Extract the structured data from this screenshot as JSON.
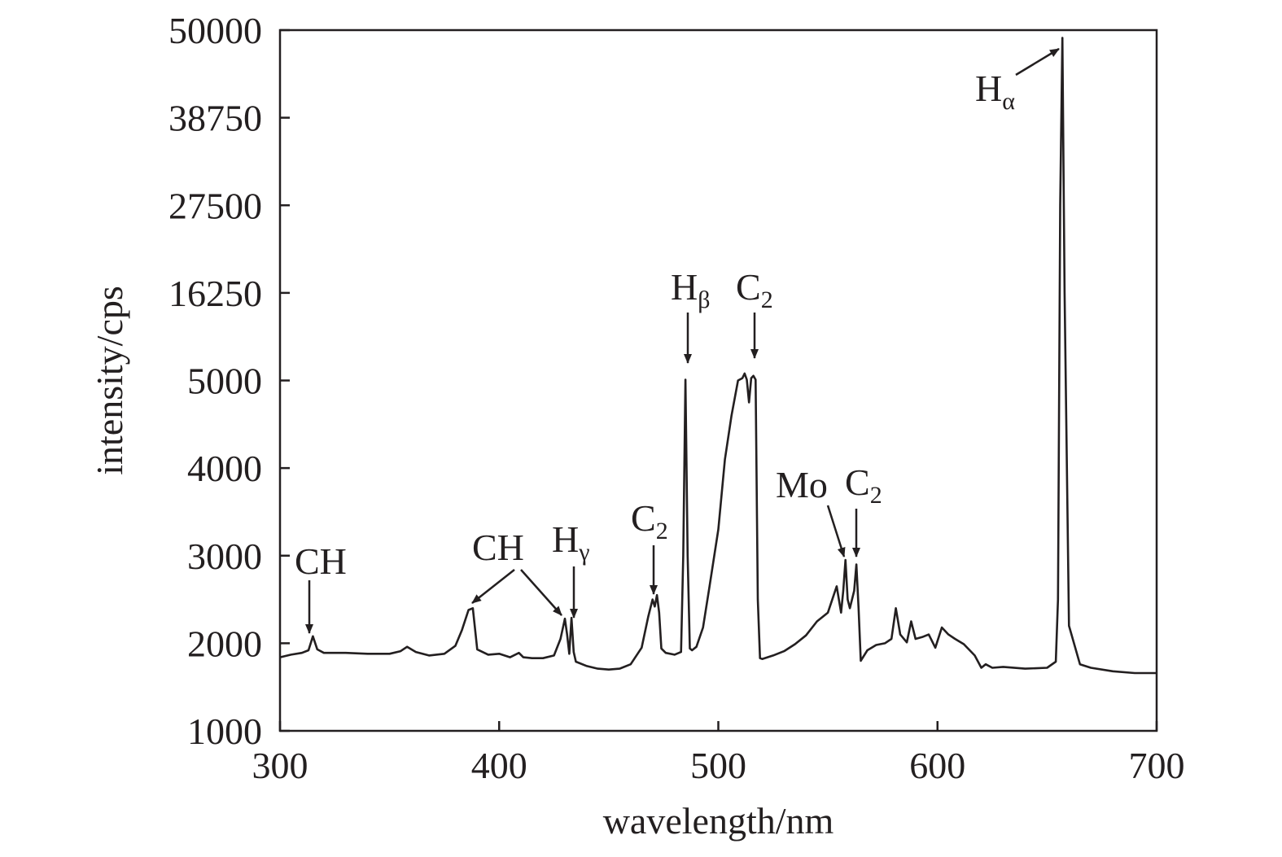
{
  "chart_data": {
    "type": "line",
    "title": "",
    "xlabel": "wavelength/nm",
    "ylabel": "intensity/cps",
    "xlim": [
      300,
      700
    ],
    "x_ticks": [
      300,
      400,
      500,
      600,
      700
    ],
    "y_ticks": [
      1000,
      2000,
      3000,
      4000,
      5000,
      16250,
      27500,
      38750,
      50000
    ],
    "y_axis_note": "piecewise scale: 1000 to 5000 linear with step 1000, then 5000 to 50000 linear with step 11250; every tick interval has equal height",
    "grid": false,
    "legend": "none",
    "line_color": "#231f20",
    "series": [
      {
        "x": [
          300,
          305,
          310,
          313,
          315,
          317,
          320,
          330,
          340,
          350,
          355,
          358,
          362,
          368,
          375,
          380,
          383,
          386,
          388,
          390,
          395,
          400,
          405,
          409,
          411,
          415,
          420,
          425,
          428,
          430,
          431,
          432,
          433,
          434,
          435,
          440,
          445,
          450,
          455,
          460,
          465,
          468,
          470,
          471,
          472,
          473,
          474,
          476,
          480,
          483,
          484,
          485,
          486,
          487,
          488,
          490,
          493,
          496,
          500,
          503,
          506,
          509,
          511,
          512,
          513,
          514,
          515,
          516,
          517,
          518,
          519,
          520,
          525,
          530,
          535,
          540,
          545,
          550,
          552,
          554,
          556,
          557,
          558,
          559,
          560,
          562,
          563,
          564,
          565,
          568,
          572,
          576,
          579,
          581,
          583,
          586,
          588,
          590,
          593,
          596,
          599,
          602,
          605,
          608,
          612,
          617,
          620,
          622,
          625,
          630,
          640,
          650,
          654,
          655,
          656,
          657,
          658,
          660,
          665,
          670,
          680,
          690,
          700
        ],
        "y": [
          1840,
          1870,
          1890,
          1920,
          2080,
          1930,
          1890,
          1890,
          1880,
          1880,
          1910,
          1960,
          1900,
          1860,
          1880,
          1970,
          2150,
          2380,
          2400,
          1930,
          1870,
          1880,
          1840,
          1890,
          1840,
          1830,
          1830,
          1860,
          2050,
          2280,
          2100,
          1880,
          2290,
          1900,
          1790,
          1740,
          1710,
          1700,
          1710,
          1760,
          1950,
          2300,
          2500,
          2420,
          2550,
          2350,
          1940,
          1890,
          1870,
          1900,
          3000,
          5100,
          3000,
          1940,
          1920,
          1960,
          2180,
          2650,
          3300,
          4100,
          4600,
          5000,
          5300,
          5900,
          5100,
          4750,
          5300,
          5600,
          5100,
          2500,
          1830,
          1820,
          1860,
          1910,
          1990,
          2090,
          2250,
          2350,
          2500,
          2650,
          2350,
          2600,
          2950,
          2500,
          2400,
          2600,
          2900,
          2400,
          1800,
          1920,
          1980,
          2000,
          2050,
          2400,
          2100,
          2010,
          2250,
          2050,
          2070,
          2100,
          1950,
          2180,
          2100,
          2050,
          1990,
          1860,
          1720,
          1760,
          1720,
          1730,
          1710,
          1720,
          1790,
          2500,
          27500,
          49000,
          16250,
          2200,
          1760,
          1720,
          1680,
          1660,
          1660
        ]
      }
    ],
    "annotations": [
      {
        "base": "CH",
        "sub": "",
        "x": 314
      },
      {
        "base": "CH",
        "sub": "",
        "x": 387
      },
      {
        "base": "CH",
        "sub": "",
        "x": 430
      },
      {
        "base": "H",
        "sub": "γ",
        "x": 433
      },
      {
        "base": "C",
        "sub": "2",
        "x": 472
      },
      {
        "base": "H",
        "sub": "β",
        "x": 486
      },
      {
        "base": "C",
        "sub": "2",
        "x": 516
      },
      {
        "base": "Mo",
        "sub": "",
        "x": 557
      },
      {
        "base": "C",
        "sub": "2",
        "x": 563
      },
      {
        "base": "H",
        "sub": "α",
        "x": 656
      }
    ]
  }
}
